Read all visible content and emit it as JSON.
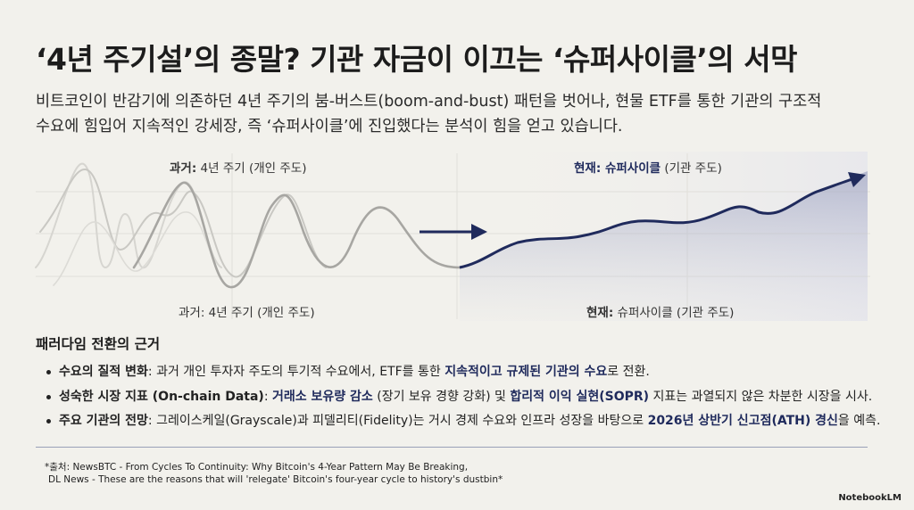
{
  "header": {
    "title": "‘4년 주기설’의 종말? 기관 자금이 이끄는 ‘슈퍼사이클’의 서막",
    "subtitle": [
      "비트코인이 반감기에 의존하던 4년 주기의 붐-버스트(boom-and-bust) 패턴을 벗어나, 현물 ETF를 통한 기관의 구조적",
      "수요에 힘입어 지속적인 강세장, 즉 ‘슈퍼사이클’에 진입했다는 분석이 힘을 얻고 있습니다."
    ]
  },
  "graphic": {
    "past_top": [
      "과거:",
      " 4년 주기 (개인 주도)"
    ],
    "present_top": [
      "현재: 슈퍼사이클",
      " (기관 주도)"
    ],
    "past_bottom": "과거: 4년 주기 (개인 주도)",
    "present_bottom": [
      "현재:",
      " 슈퍼사이클 (기관 주도)"
    ]
  },
  "section": {
    "heading": "패러다임 전환의 근거",
    "bullets": [
      [
        "수요의 질적 변화",
        ": 과거 개인 투자자 주도의 투기적 수요에서, ETF를 통한 ",
        "지속적이고 규제된 기관의 수요",
        "로 전환."
      ],
      [
        "성숙한 시장 지표 (On-chain Data)",
        ": ",
        "거래소 보유량 감소",
        " (장기 보유 경향 강화) 및 ",
        "합리적 이익 실현(SOPR)",
        " 지표는 과열되지 않은 차분한 시장을 시사."
      ],
      [
        "주요 기관의 전망",
        ": 그레이스케일(Grayscale)과 피델리티(Fidelity)는 거시 경제 수요와 인프라 성장을 바탕으로 ",
        "2026년 상반기 신고점(ATH) 경신",
        "을 예측."
      ]
    ]
  },
  "footer": {
    "sources": [
      "*출처: NewsBTC - From Cycles To Continuity: Why Bitcoin's 4-Year Pattern May Be Breaking,",
      "DL News - These are the reasons that will 'relegate' Bitcoin's four-year cycle to history's dustbin*"
    ],
    "logo": "NotebookLM"
  }
}
